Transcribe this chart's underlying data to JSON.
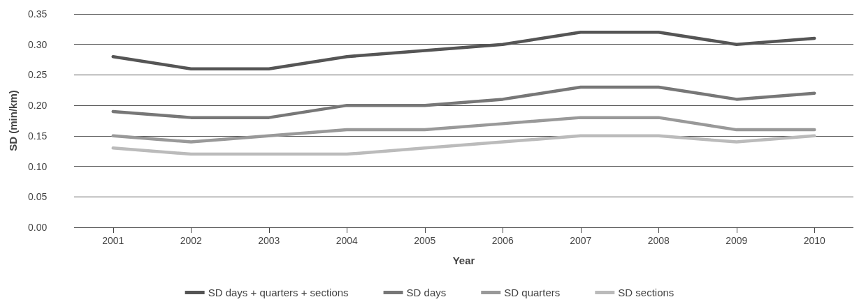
{
  "chart_data": {
    "type": "line",
    "xlabel": "Year",
    "ylabel": "SD (min/km)",
    "categories": [
      "2001",
      "2002",
      "2003",
      "2004",
      "2005",
      "2006",
      "2007",
      "2008",
      "2009",
      "2010"
    ],
    "series": [
      {
        "name": "SD days + quarters + sections",
        "color": "#555555",
        "values": [
          0.28,
          0.26,
          0.26,
          0.28,
          0.29,
          0.3,
          0.32,
          0.32,
          0.3,
          0.31
        ]
      },
      {
        "name": "SD days",
        "color": "#777777",
        "values": [
          0.19,
          0.18,
          0.18,
          0.2,
          0.2,
          0.21,
          0.23,
          0.23,
          0.21,
          0.22
        ]
      },
      {
        "name": "SD quarters",
        "color": "#999999",
        "values": [
          0.15,
          0.14,
          0.15,
          0.16,
          0.16,
          0.17,
          0.18,
          0.18,
          0.16,
          0.16
        ]
      },
      {
        "name": "SD sections",
        "color": "#bbbbbb",
        "values": [
          0.13,
          0.12,
          0.12,
          0.12,
          0.13,
          0.14,
          0.15,
          0.15,
          0.14,
          0.15
        ]
      }
    ],
    "ylim": [
      0,
      0.35
    ],
    "yticks": [
      {
        "value": 0,
        "label": "0.00"
      },
      0.05,
      {
        "value": 0.1,
        "label": "0.10"
      },
      0.15,
      {
        "value": 0.2,
        "label": "0.20"
      },
      0.25,
      {
        "value": 0.3,
        "label": "0.30"
      },
      0.35
    ],
    "grid": "y",
    "legend": "bottom",
    "marker": "none",
    "line_style": "solid"
  }
}
